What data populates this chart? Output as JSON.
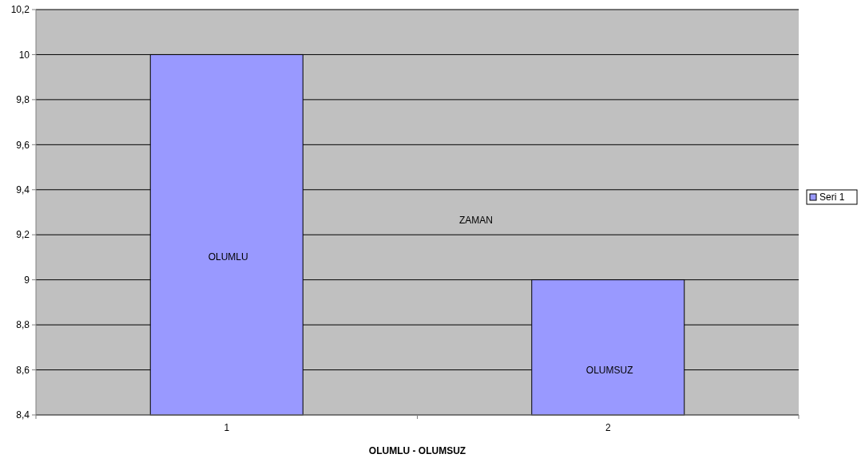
{
  "chart_data": {
    "type": "bar",
    "xlabel": "OLUMLU - OLUMSUZ",
    "categories": [
      "1",
      "2"
    ],
    "series": [
      {
        "name": "Seri 1",
        "color": "#9999ff",
        "values": [
          10,
          9
        ]
      }
    ],
    "ylim": [
      8.4,
      10.2
    ],
    "yticks": [
      {
        "value": 8.4,
        "label": "8,4"
      },
      {
        "value": 8.6,
        "label": "8,6"
      },
      {
        "value": 8.8,
        "label": "8,8"
      },
      9,
      {
        "value": 9.2,
        "label": "9,2"
      },
      {
        "value": 9.4,
        "label": "9,4"
      },
      {
        "value": 9.6,
        "label": "9,6"
      },
      {
        "value": 9.8,
        "label": "9,8"
      },
      10,
      {
        "value": 10.2,
        "label": "10,2"
      }
    ],
    "grid": "y",
    "legend": "right",
    "annotations": [
      "OLUMLU",
      "ZAMAN",
      "OLUMSUZ"
    ]
  }
}
